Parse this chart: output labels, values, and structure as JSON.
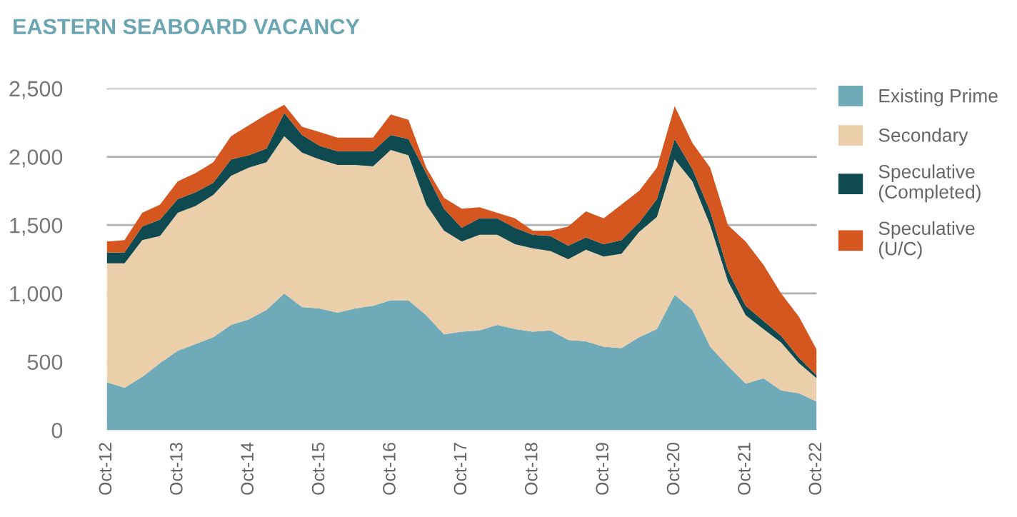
{
  "chart_data": {
    "type": "area",
    "stacked": true,
    "title": "EASTERN SEABOARD VACANCY",
    "categories": [
      "Oct-12",
      null,
      null,
      null,
      "Oct-13",
      null,
      null,
      null,
      "Oct-14",
      null,
      null,
      null,
      "Oct-15",
      null,
      null,
      null,
      "Oct-16",
      null,
      null,
      null,
      "Oct-17",
      null,
      null,
      null,
      "Oct-18",
      null,
      null,
      null,
      "Oct-19",
      null,
      null,
      null,
      "Oct-20",
      null,
      null,
      null,
      "Oct-21",
      null,
      null,
      null,
      "Oct-22"
    ],
    "series": [
      {
        "name": "Existing Prime",
        "color": "#6eaab8",
        "values": [
          350,
          310,
          390,
          490,
          580,
          630,
          680,
          770,
          810,
          880,
          1000,
          900,
          890,
          860,
          890,
          910,
          950,
          950,
          840,
          700,
          720,
          730,
          770,
          740,
          720,
          730,
          660,
          650,
          610,
          600,
          680,
          740,
          990,
          880,
          610,
          470,
          340,
          380,
          290,
          270,
          210
        ]
      },
      {
        "name": "Secondary",
        "color": "#ebceaa",
        "values": [
          870,
          910,
          1000,
          930,
          1010,
          1010,
          1040,
          1090,
          1110,
          1080,
          1150,
          1130,
          1090,
          1080,
          1050,
          1020,
          1100,
          1060,
          810,
          760,
          660,
          700,
          660,
          620,
          610,
          580,
          590,
          670,
          660,
          690,
          770,
          820,
          990,
          940,
          890,
          620,
          500,
          360,
          350,
          220,
          170
        ]
      },
      {
        "name": "Speculative (Completed)",
        "color": "#0e4a4f",
        "values": [
          80,
          80,
          100,
          120,
          100,
          100,
          90,
          120,
          90,
          100,
          170,
          130,
          100,
          100,
          100,
          110,
          110,
          120,
          230,
          160,
          100,
          120,
          120,
          120,
          100,
          110,
          100,
          90,
          90,
          100,
          70,
          130,
          150,
          90,
          100,
          80,
          70,
          60,
          50,
          40,
          20
        ]
      },
      {
        "name": "Speculative (U/C)",
        "color": "#d5561f",
        "values": [
          80,
          90,
          100,
          110,
          130,
          140,
          150,
          170,
          220,
          250,
          60,
          60,
          100,
          100,
          100,
          100,
          150,
          140,
          40,
          80,
          140,
          80,
          40,
          70,
          30,
          40,
          140,
          190,
          190,
          260,
          230,
          230,
          240,
          190,
          320,
          330,
          470,
          410,
          310,
          300,
          190
        ]
      }
    ],
    "ylim": [
      0,
      2500
    ],
    "yticks": [
      0,
      500,
      {
        "value": 1000,
        "label": "1,000"
      },
      {
        "value": 1500,
        "label": "1,500"
      },
      {
        "value": 2000,
        "label": "2,000"
      },
      {
        "value": 2500,
        "label": "2,500"
      }
    ],
    "grid": "y",
    "legend": "right"
  }
}
